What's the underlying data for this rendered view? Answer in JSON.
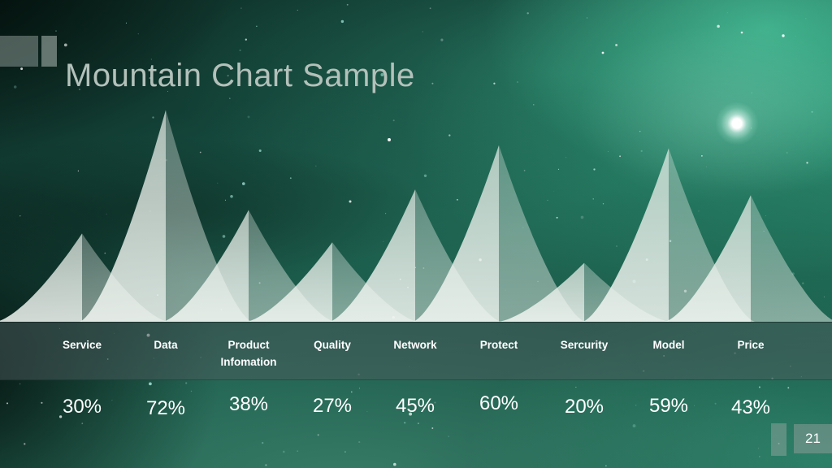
{
  "slide": {
    "title": "Mountain Chart Sample",
    "page_number": "21"
  },
  "chart_data": {
    "type": "area",
    "subtype": "mountain-peak-chart",
    "title": "Mountain Chart Sample",
    "categories": [
      "Service",
      "Data",
      "Product Infomation",
      "Quality",
      "Network",
      "Protect",
      "Sercurity",
      "Model",
      "Price"
    ],
    "values": [
      30,
      72,
      38,
      27,
      45,
      60,
      20,
      59,
      43
    ],
    "value_labels": [
      "30%",
      "72%",
      "38%",
      "27%",
      "45%",
      "60%",
      "20%",
      "59%",
      "43%"
    ],
    "unit": "%",
    "ylim": [
      0,
      100
    ],
    "grid": false,
    "legend": "none"
  },
  "style": {
    "mountain_left_fill_top": "rgba(234,240,234,0.70)",
    "mountain_left_fill_bottom": "rgba(243,247,243,0.86)",
    "mountain_right_fill_top": "rgba(219,228,222,0.34)",
    "mountain_right_fill_bottom": "rgba(229,236,230,0.52)",
    "band_overlay": "rgba(75,90,92,0.5)",
    "label_text": "#ffffff",
    "value_text": "#ffffff",
    "title_text": "#b3c1ba",
    "aurora_bright": "#3ec19a",
    "background_dark": "#0d2b23",
    "star_white": "#ffffff",
    "star_cyan": "#aef0e4"
  }
}
